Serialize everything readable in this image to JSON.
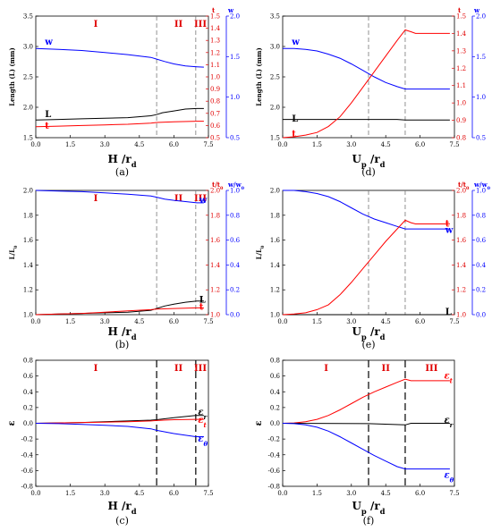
{
  "chart_data": [
    {
      "id": "a",
      "type": "line",
      "caption": "(a)",
      "xlabel": "H /r",
      "xlabel_sub": "d",
      "xlim": [
        0,
        7.5
      ],
      "xticks": [
        "0.0",
        "1.5",
        "3.0",
        "4.5",
        "6.0",
        "7.5"
      ],
      "ylabel_left": "Length (L) (mm)",
      "ylim_left": [
        1.5,
        3.5
      ],
      "yticks_left": [
        "1.5",
        "2.0",
        "2.5",
        "3.0",
        "3.5"
      ],
      "ylabel_right": "t",
      "ylim_right": [
        0.5,
        1.5
      ],
      "yticks_right": [
        "0.5",
        "0.6",
        "0.7",
        "0.8",
        "0.9",
        "1.0",
        "1.1",
        "1.2",
        "1.3",
        "1.4",
        "1.5"
      ],
      "ylabel_right2": "w",
      "ylim_right2": [
        0.5,
        2.0
      ],
      "yticks_right2": [
        "0.5",
        "1.0",
        "1.5",
        "2.0"
      ],
      "regions": [
        "I",
        "II",
        "III"
      ],
      "region_x": [
        2.6,
        6.2,
        7.15
      ],
      "vlines": [
        5.25,
        6.95
      ],
      "series": [
        {
          "name": "w",
          "color": "#0000ff",
          "axis": "r2",
          "label_x": 0.4,
          "label_y": 1.68,
          "x": [
            0,
            1,
            2,
            3,
            4,
            5,
            5.25,
            5.6,
            6,
            6.5,
            7,
            7.3
          ],
          "y": [
            1.6,
            1.59,
            1.575,
            1.55,
            1.525,
            1.49,
            1.47,
            1.44,
            1.41,
            1.385,
            1.375,
            1.37
          ]
        },
        {
          "name": "L",
          "color": "#000000",
          "axis": "l",
          "label_x": 0.4,
          "label_y": 1.88,
          "x": [
            0,
            1,
            2,
            3,
            4,
            5,
            5.25,
            5.5,
            6,
            6.5,
            7,
            7.3
          ],
          "y": [
            1.79,
            1.8,
            1.81,
            1.82,
            1.83,
            1.86,
            1.88,
            1.91,
            1.94,
            1.97,
            1.98,
            1.98
          ]
        },
        {
          "name": "t",
          "color": "#ff0000",
          "axis": "r1",
          "label_x": 0.4,
          "label_y": 0.595,
          "x": [
            0,
            1,
            2,
            3,
            4,
            5,
            5.25,
            6,
            7,
            7.3
          ],
          "y": [
            0.59,
            0.595,
            0.6,
            0.605,
            0.61,
            0.62,
            0.625,
            0.63,
            0.635,
            0.635
          ]
        }
      ]
    },
    {
      "id": "d",
      "type": "line",
      "caption": "(d)",
      "xlabel": "U /r",
      "xlabel_sub1": "p",
      "xlabel_sub": "d",
      "xlim": [
        0,
        7.5
      ],
      "xticks": [
        "0.0",
        "1.5",
        "3.0",
        "4.5",
        "6.0",
        "7.5"
      ],
      "ylabel_left": "Length (L) (mm)",
      "ylim_left": [
        1.5,
        3.5
      ],
      "yticks_left": [
        "1.5",
        "2.0",
        "2.5",
        "3.0",
        "3.5"
      ],
      "ylabel_right": "t",
      "ylim_right": [
        0.8,
        1.5
      ],
      "yticks_right": [
        "0.8",
        "0.9",
        "1.0",
        "1.1",
        "1.2",
        "1.3",
        "1.4",
        "1.5"
      ],
      "ylabel_right2": "w",
      "ylim_right2": [
        0.5,
        2.0
      ],
      "yticks_right2": [
        "0.5",
        "1.0",
        "1.5",
        "2.0"
      ],
      "regions": [],
      "region_x": [],
      "vlines": [
        3.75,
        5.35
      ],
      "series": [
        {
          "name": "w",
          "color": "#0000ff",
          "axis": "r2",
          "label_x": 0.4,
          "label_y": 1.68,
          "x": [
            0,
            0.5,
            1,
            1.5,
            2,
            2.5,
            3,
            3.5,
            4,
            4.5,
            5,
            5.35,
            5.8,
            7.3
          ],
          "y": [
            1.6,
            1.6,
            1.59,
            1.57,
            1.53,
            1.48,
            1.41,
            1.33,
            1.25,
            1.18,
            1.13,
            1.1,
            1.1,
            1.1
          ]
        },
        {
          "name": "L",
          "color": "#000000",
          "axis": "l",
          "label_x": 0.4,
          "label_y": 1.81,
          "x": [
            0,
            2,
            3.5,
            5,
            5.35,
            5.8,
            7.3
          ],
          "y": [
            1.8,
            1.8,
            1.8,
            1.8,
            1.79,
            1.79,
            1.79
          ]
        },
        {
          "name": "t",
          "color": "#ff0000",
          "axis": "r1",
          "label_x": 0.4,
          "label_y": 0.82,
          "x": [
            0,
            0.5,
            1,
            1.5,
            2,
            2.5,
            3,
            3.5,
            4,
            4.5,
            5,
            5.35,
            5.6,
            5.8,
            7.3
          ],
          "y": [
            0.8,
            0.805,
            0.815,
            0.83,
            0.865,
            0.92,
            1,
            1.09,
            1.18,
            1.27,
            1.36,
            1.42,
            1.41,
            1.4,
            1.4
          ]
        }
      ]
    },
    {
      "id": "b",
      "type": "line",
      "caption": "(b)",
      "xlabel": "H /r",
      "xlabel_sub": "d",
      "xlim": [
        0,
        7.5
      ],
      "xticks": [
        "0.0",
        "1.5",
        "3.0",
        "4.5",
        "6.0",
        "7.5"
      ],
      "ylabel_left": "L/L",
      "ylabel_left_sub": "0",
      "ylim_left": [
        1.0,
        2.0
      ],
      "yticks_left": [
        "1.0",
        "1.2",
        "1.4",
        "1.6",
        "1.8",
        "2.0"
      ],
      "ylabel_right": "t/t",
      "ylabel_right_sub": "0",
      "ylim_right": [
        1.0,
        2.0
      ],
      "yticks_right": [
        "1.0",
        "1.2",
        "1.4",
        "1.6",
        "1.8",
        "2.0"
      ],
      "ylabel_right2": "w/w",
      "ylabel_right2_sub": "0",
      "ylim_right2": [
        0.0,
        1.0
      ],
      "yticks_right2": [
        "0.0",
        "0.2",
        "0.4",
        "0.6",
        "0.8",
        "1.0"
      ],
      "regions": [
        "I",
        "II",
        "III"
      ],
      "region_x": [
        2.6,
        6.2,
        7.15
      ],
      "vlines": [
        5.25,
        6.95
      ],
      "series": [
        {
          "name": "w",
          "color": "#0000ff",
          "axis": "r2",
          "label_x": 7.1,
          "label_y": 0.92,
          "x": [
            0,
            1,
            2,
            3,
            4,
            5,
            5.25,
            5.6,
            6,
            6.5,
            7,
            7.3
          ],
          "y": [
            1.0,
            0.995,
            0.99,
            0.98,
            0.97,
            0.955,
            0.945,
            0.93,
            0.92,
            0.91,
            0.9,
            0.9
          ]
        },
        {
          "name": "L",
          "color": "#000000",
          "axis": "l",
          "label_x": 7.1,
          "label_y": 1.12,
          "x": [
            0,
            1,
            2,
            3,
            4,
            5,
            5.25,
            5.6,
            6,
            6.5,
            7,
            7.3
          ],
          "y": [
            1.0,
            1.005,
            1.01,
            1.015,
            1.02,
            1.035,
            1.05,
            1.07,
            1.085,
            1.1,
            1.11,
            1.11
          ]
        },
        {
          "name": "t",
          "color": "#ff0000",
          "axis": "r1",
          "label_x": 7.1,
          "label_y": 1.06,
          "x": [
            0,
            1,
            2,
            3,
            4,
            5,
            5.25,
            6,
            7,
            7.3
          ],
          "y": [
            1.0,
            1.005,
            1.01,
            1.02,
            1.03,
            1.04,
            1.045,
            1.05,
            1.055,
            1.055
          ]
        }
      ]
    },
    {
      "id": "e",
      "type": "line",
      "caption": "(e)",
      "xlabel": "U /r",
      "xlabel_sub1": "p",
      "xlabel_sub": "d",
      "xlim": [
        0,
        7.5
      ],
      "xticks": [
        "0.0",
        "1.5",
        "3.0",
        "4.5",
        "6.0",
        "7.5"
      ],
      "ylabel_left": "L/L",
      "ylabel_left_sub": "0",
      "ylim_left": [
        1.0,
        2.0
      ],
      "yticks_left": [
        "1.0",
        "1.2",
        "1.4",
        "1.6",
        "1.8",
        "2.0"
      ],
      "ylabel_right": "t/t",
      "ylabel_right_sub": "0",
      "ylim_right": [
        1.0,
        2.0
      ],
      "yticks_right": [
        "1.0",
        "1.2",
        "1.4",
        "1.6",
        "1.8",
        "2.0"
      ],
      "ylabel_right2": "w/w",
      "ylabel_right2_sub": "0",
      "ylim_right2": [
        0.0,
        1.0
      ],
      "yticks_right2": [
        "0.0",
        "0.2",
        "0.4",
        "0.6",
        "0.8",
        "1.0"
      ],
      "regions": [],
      "region_x": [],
      "vlines": [
        3.75,
        5.35
      ],
      "series": [
        {
          "name": "w",
          "color": "#0000ff",
          "axis": "r2",
          "label_x": 7.1,
          "label_y": 0.68,
          "x": [
            0,
            0.5,
            1,
            1.5,
            2,
            2.5,
            3,
            3.5,
            4,
            4.5,
            5,
            5.35,
            5.8,
            7.3
          ],
          "y": [
            1.0,
            1.0,
            0.99,
            0.975,
            0.95,
            0.91,
            0.86,
            0.81,
            0.77,
            0.74,
            0.71,
            0.69,
            0.69,
            0.69
          ]
        },
        {
          "name": "L",
          "color": "#000000",
          "axis": "l",
          "label_x": 7.1,
          "label_y": 1.02,
          "x": [
            0,
            7.3
          ],
          "y": [
            1.0,
            1.0
          ]
        },
        {
          "name": "t",
          "color": "#ff0000",
          "axis": "r1",
          "label_x": 7.1,
          "label_y": 1.73,
          "x": [
            0,
            0.5,
            1,
            1.5,
            2,
            2.5,
            3,
            3.5,
            4,
            4.5,
            5,
            5.35,
            5.6,
            5.8,
            7.3
          ],
          "y": [
            1.0,
            1.005,
            1.015,
            1.04,
            1.08,
            1.16,
            1.26,
            1.37,
            1.48,
            1.59,
            1.69,
            1.76,
            1.74,
            1.73,
            1.73
          ]
        }
      ]
    },
    {
      "id": "c",
      "type": "line",
      "caption": "(c)",
      "xlabel": "H /r",
      "xlabel_sub": "d",
      "xlim": [
        0,
        7.5
      ],
      "xticks": [
        "0.0",
        "1.5",
        "3.0",
        "4.5",
        "6.0",
        "7.5"
      ],
      "ylabel_left": "ε",
      "ylim_left": [
        -0.8,
        0.8
      ],
      "yticks_left": [
        "-0.8",
        "-0.6",
        "-0.4",
        "-0.2",
        "0.0",
        "0.2",
        "0.4",
        "0.6",
        "0.8"
      ],
      "regions": [
        "I",
        "II",
        "III"
      ],
      "region_x": [
        2.6,
        6.2,
        7.15
      ],
      "vlines": [
        5.25,
        6.95
      ],
      "series": [
        {
          "name": "ε",
          "sub": "r",
          "color": "#000000",
          "axis": "l",
          "label_x": 7.05,
          "label_y": 0.14,
          "x": [
            0,
            1,
            2,
            3,
            4,
            5,
            5.25,
            6,
            6.95,
            7.3
          ],
          "y": [
            0,
            0.005,
            0.01,
            0.02,
            0.03,
            0.04,
            0.045,
            0.07,
            0.1,
            0.1
          ]
        },
        {
          "name": "ε",
          "sub": "t",
          "color": "#ff0000",
          "axis": "l",
          "label_x": 7.05,
          "label_y": 0.04,
          "x": [
            0,
            1,
            2,
            3,
            4,
            5,
            5.25,
            6,
            6.95,
            7.3
          ],
          "y": [
            0,
            0.005,
            0.01,
            0.015,
            0.02,
            0.03,
            0.035,
            0.045,
            0.05,
            0.05
          ]
        },
        {
          "name": "ε",
          "sub": "θ",
          "color": "#0000ff",
          "axis": "l",
          "label_x": 7.05,
          "label_y": -0.2,
          "x": [
            0,
            1,
            2,
            3,
            4,
            5,
            5.25,
            6,
            6.95,
            7.3
          ],
          "y": [
            0,
            -0.005,
            -0.015,
            -0.025,
            -0.04,
            -0.07,
            -0.09,
            -0.13,
            -0.17,
            -0.17
          ]
        }
      ]
    },
    {
      "id": "f",
      "type": "line",
      "caption": "(f)",
      "xlabel": "U /r",
      "xlabel_sub1": "p",
      "xlabel_sub": "d",
      "xlim": [
        0,
        7.5
      ],
      "xticks": [
        "0.0",
        "1.5",
        "3.0",
        "4.5",
        "6.0",
        "7.5"
      ],
      "ylabel_left": "ε",
      "ylim_left": [
        -0.8,
        0.8
      ],
      "yticks_left": [
        "-0.8",
        "-0.6",
        "-0.4",
        "-0.2",
        "0.0",
        "0.2",
        "0.4",
        "0.6",
        "0.8"
      ],
      "regions": [
        "I",
        "II",
        "III"
      ],
      "region_x": [
        1.9,
        4.5,
        6.5
      ],
      "vlines": [
        3.75,
        5.35
      ],
      "series": [
        {
          "name": "ε",
          "sub": "t",
          "color": "#ff0000",
          "axis": "l",
          "label_x": 7.05,
          "label_y": 0.6,
          "x": [
            0,
            0.5,
            1,
            1.5,
            2,
            2.5,
            3,
            3.5,
            4,
            4.5,
            5,
            5.35,
            5.6,
            7.3
          ],
          "y": [
            0,
            0.005,
            0.02,
            0.05,
            0.1,
            0.17,
            0.25,
            0.33,
            0.4,
            0.46,
            0.52,
            0.56,
            0.54,
            0.54
          ]
        },
        {
          "name": "ε",
          "sub": "r",
          "color": "#000000",
          "axis": "l",
          "label_x": 7.05,
          "label_y": 0.04,
          "x": [
            0,
            3.75,
            5.35,
            5.6,
            7.3
          ],
          "y": [
            0,
            -0.005,
            -0.02,
            0.0,
            0.0
          ]
        },
        {
          "name": "ε",
          "sub": "θ",
          "color": "#0000ff",
          "axis": "l",
          "label_x": 7.05,
          "label_y": -0.66,
          "x": [
            0,
            0.5,
            1,
            1.5,
            2,
            2.5,
            3,
            3.5,
            4,
            4.5,
            5,
            5.35,
            7.3
          ],
          "y": [
            0,
            -0.005,
            -0.02,
            -0.05,
            -0.1,
            -0.17,
            -0.25,
            -0.33,
            -0.41,
            -0.48,
            -0.55,
            -0.58,
            -0.58
          ]
        }
      ]
    }
  ]
}
